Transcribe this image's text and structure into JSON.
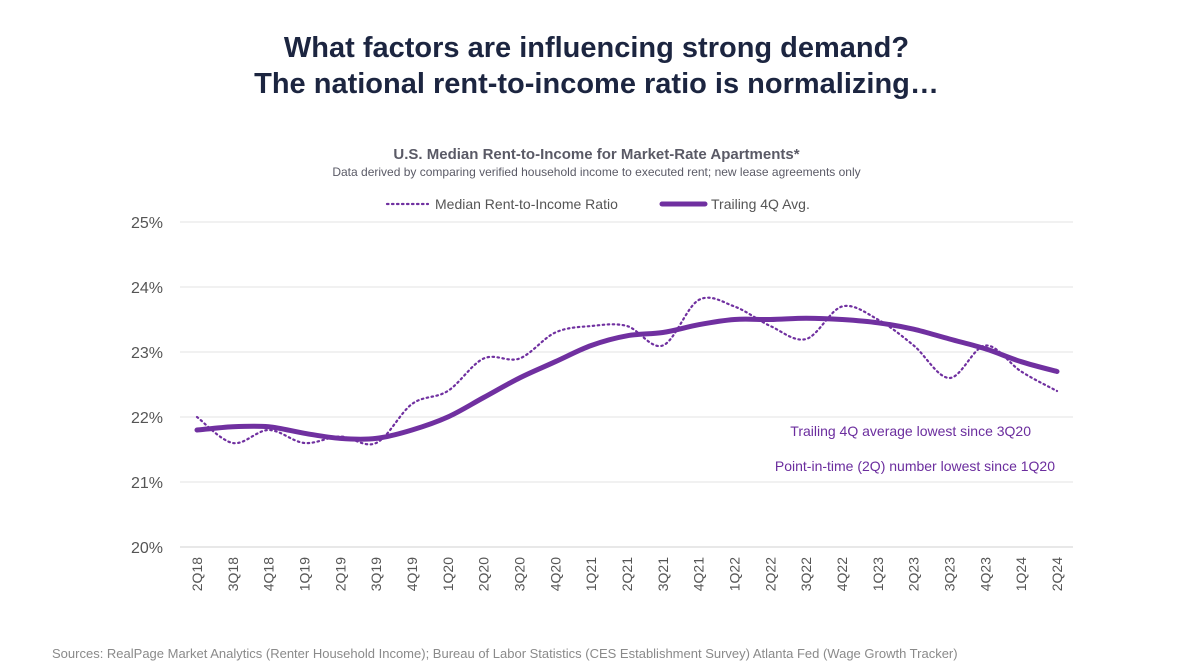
{
  "header": {
    "title_line1": "What factors are influencing strong demand?",
    "title_line2": "The national rent-to-income ratio is normalizing…"
  },
  "footer": {
    "sources": "Sources: RealPage Market Analytics (Renter Household Income); Bureau of Labor Statistics (CES Establishment Survey) Atlanta Fed (Wage Growth Tracker)"
  },
  "colors": {
    "series": "#7030a0",
    "grid": "#e3e3e3",
    "title": "#1c2540"
  },
  "chart_data": {
    "type": "line",
    "title": "U.S. Median Rent-to-Income for Market-Rate Apartments*",
    "subtitle": "Data derived by comparing verified household income to executed rent; new lease agreements only",
    "legend_position": "top-center",
    "grid": true,
    "y_tick_labels": [
      "25%",
      "24%",
      "23%",
      "22%",
      "21%",
      "20%"
    ],
    "ylim": [
      20,
      25
    ],
    "categories": [
      "2Q18",
      "3Q18",
      "4Q18",
      "1Q19",
      "2Q19",
      "3Q19",
      "4Q19",
      "1Q20",
      "2Q20",
      "3Q20",
      "4Q20",
      "1Q21",
      "2Q21",
      "3Q21",
      "4Q21",
      "1Q22",
      "2Q22",
      "3Q22",
      "4Q22",
      "1Q23",
      "2Q23",
      "3Q23",
      "4Q23",
      "1Q24",
      "2Q24"
    ],
    "series": [
      {
        "name": "Median Rent-to-Income Ratio",
        "style": "dotted",
        "values": [
          22.0,
          21.6,
          21.8,
          21.6,
          21.7,
          21.6,
          22.2,
          22.4,
          22.9,
          22.9,
          23.3,
          23.4,
          23.4,
          23.1,
          23.8,
          23.7,
          23.4,
          23.2,
          23.7,
          23.5,
          23.1,
          22.6,
          23.1,
          22.7,
          22.4
        ]
      },
      {
        "name": "Trailing 4Q Avg.",
        "style": "solid",
        "values": [
          21.8,
          21.85,
          21.85,
          21.75,
          21.67,
          21.67,
          21.8,
          22.0,
          22.3,
          22.6,
          22.85,
          23.1,
          23.25,
          23.3,
          23.42,
          23.5,
          23.5,
          23.52,
          23.5,
          23.45,
          23.35,
          23.2,
          23.05,
          22.85,
          22.7
        ]
      }
    ],
    "annotations": [
      "Trailing 4Q average lowest since 3Q20",
      "Point-in-time (2Q) number lowest since 1Q20"
    ]
  }
}
